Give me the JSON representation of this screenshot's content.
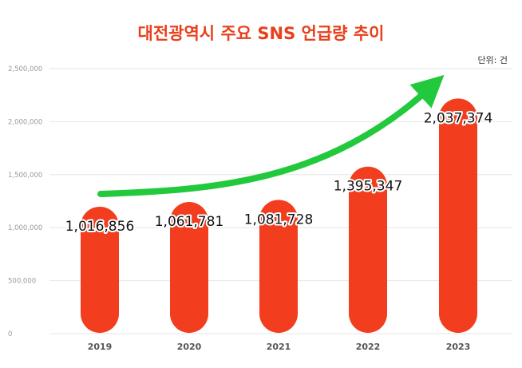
{
  "chart_data": {
    "type": "bar",
    "title": "대전광역시 주요 SNS 언급량 추이",
    "unit_label": "단위: 건",
    "categories": [
      "2019",
      "2020",
      "2021",
      "2022",
      "2023"
    ],
    "values": [
      1016856,
      1061781,
      1081728,
      1395347,
      2037374
    ],
    "value_labels": [
      "1,016,856",
      "1,061,781",
      "1,081,728",
      "1,395,347",
      "2,037,374"
    ],
    "ylim": [
      0,
      2500000
    ],
    "yticks": [
      0,
      500000,
      1000000,
      1500000,
      2000000,
      2500000
    ],
    "ytick_labels": [
      "0",
      "500,000",
      "1,000,000",
      "1,500,000",
      "2,000,000",
      "2,500,000"
    ],
    "grid": true,
    "xlabel": "",
    "ylabel": "",
    "annotation": "upward trend arrow",
    "colors": {
      "bar": "#f23d1f",
      "title": "#e8401c",
      "arrow": "#22c93c"
    }
  }
}
